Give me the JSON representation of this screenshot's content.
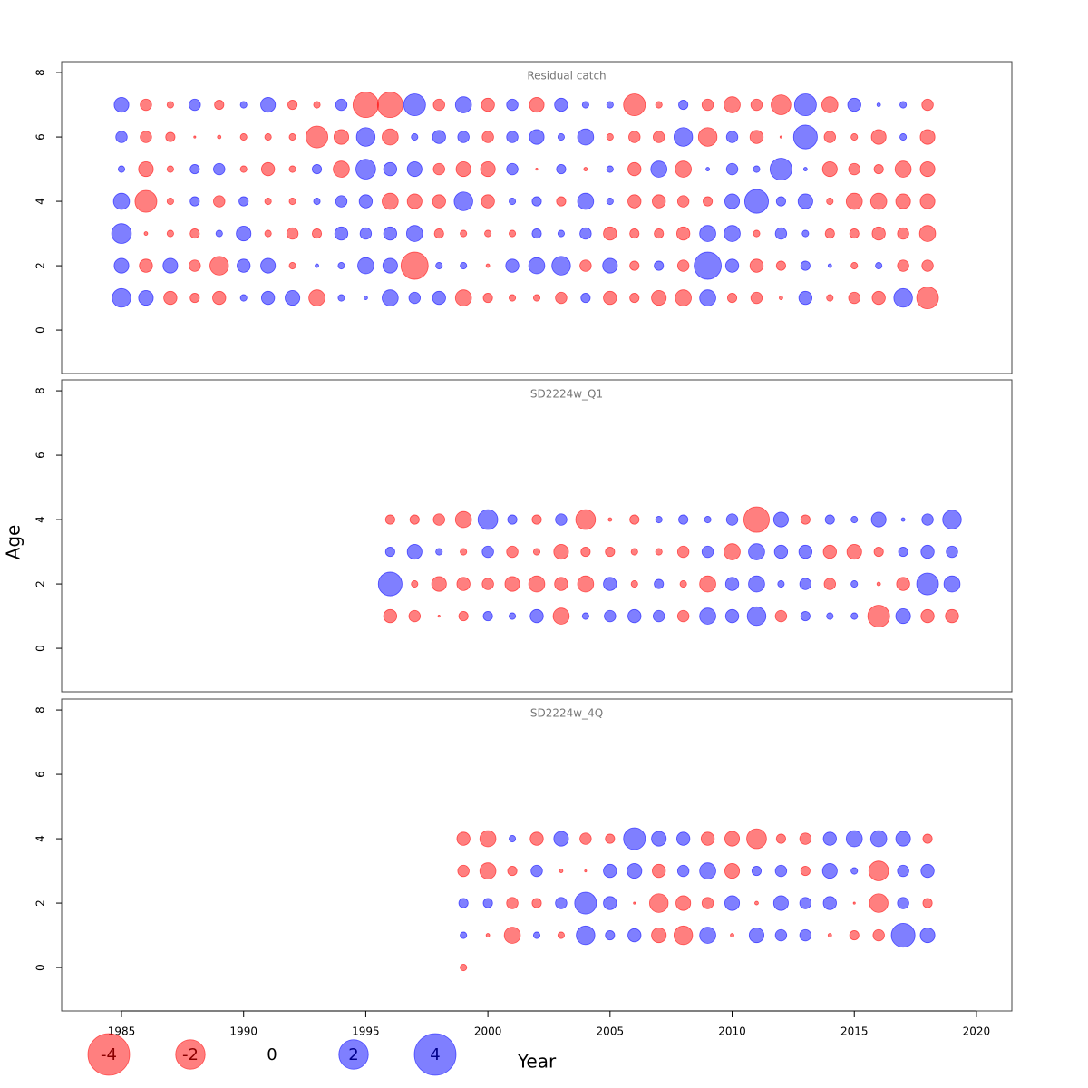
{
  "chart_data": {
    "type": "bubble",
    "xlabel": "Year",
    "ylabel": "Age",
    "xlim": [
      1982.55,
      2021.45
    ],
    "xticks": [
      1985,
      1990,
      1995,
      2000,
      2005,
      2010,
      2015,
      2020
    ],
    "colors": {
      "negative": "#ff0000",
      "positive": "#0000ff"
    },
    "size_legend": {
      "values": [
        -4,
        -2,
        0,
        2,
        4
      ]
    },
    "panels": [
      {
        "title": "Residual catch",
        "ylim": [
          -1.35,
          8.34
        ],
        "yticks": [
          0,
          2,
          4,
          6,
          8
        ],
        "x": [
          1985,
          1986,
          1987,
          1988,
          1989,
          1990,
          1991,
          1992,
          1993,
          1994,
          1995,
          1996,
          1997,
          1998,
          1999,
          2000,
          2001,
          2002,
          2003,
          2004,
          2005,
          2006,
          2007,
          2008,
          2009,
          2010,
          2011,
          2012,
          2013,
          2014,
          2015,
          2016,
          2017,
          2018
        ],
        "series": [
          {
            "age": 7,
            "values": [
              0.5,
              -0.3,
              -0.1,
              0.3,
              -0.2,
              0.1,
              0.5,
              -0.2,
              -0.1,
              0.3,
              -1.5,
              -1.5,
              1.1,
              -0.3,
              0.6,
              -0.4,
              0.3,
              -0.5,
              0.4,
              0.1,
              0.1,
              -1.1,
              -0.1,
              0.2,
              -0.3,
              -0.6,
              -0.3,
              -0.9,
              1.1,
              -0.6,
              0.4,
              0.03,
              0.1,
              -0.3
            ]
          },
          {
            "age": 6,
            "values": [
              0.3,
              -0.3,
              -0.2,
              -0.01,
              -0.03,
              -0.1,
              -0.1,
              -0.1,
              -1.1,
              -0.5,
              0.8,
              -0.6,
              0.1,
              0.4,
              0.3,
              -0.3,
              0.3,
              0.5,
              0.1,
              0.6,
              -0.1,
              -0.3,
              -0.3,
              0.8,
              -0.8,
              0.3,
              -0.4,
              -0.01,
              1.3,
              -0.3,
              -0.1,
              -0.5,
              0.1,
              -0.5
            ]
          },
          {
            "age": 5,
            "values": [
              0.1,
              -0.5,
              -0.1,
              0.2,
              0.3,
              -0.1,
              -0.4,
              -0.1,
              0.2,
              -0.6,
              0.9,
              0.4,
              0.5,
              -0.3,
              -0.5,
              -0.5,
              0.3,
              -0.01,
              0.2,
              -0.03,
              0.1,
              -0.4,
              0.6,
              -0.6,
              0.03,
              0.3,
              0.1,
              1.1,
              0.03,
              -0.5,
              -0.3,
              -0.2,
              -0.6,
              -0.5
            ]
          },
          {
            "age": 4,
            "values": [
              0.6,
              -1.1,
              -0.1,
              0.2,
              -0.3,
              0.2,
              -0.1,
              -0.1,
              0.1,
              0.3,
              0.4,
              -0.6,
              -0.5,
              -0.4,
              0.8,
              -0.4,
              0.1,
              0.2,
              -0.2,
              0.6,
              0.1,
              -0.4,
              -0.4,
              -0.3,
              -0.2,
              0.5,
              1.3,
              0.2,
              0.5,
              -0.1,
              -0.6,
              -0.6,
              -0.5,
              -0.5
            ]
          },
          {
            "age": 3,
            "values": [
              0.9,
              -0.03,
              -0.1,
              -0.2,
              0.1,
              0.5,
              -0.1,
              -0.3,
              -0.2,
              0.4,
              0.3,
              0.4,
              0.6,
              -0.2,
              -0.1,
              -0.1,
              -0.1,
              0.2,
              0.1,
              0.3,
              -0.4,
              -0.2,
              -0.2,
              -0.4,
              0.6,
              0.6,
              -0.1,
              0.3,
              0.1,
              -0.2,
              -0.2,
              -0.4,
              -0.3,
              -0.6
            ]
          },
          {
            "age": 2,
            "values": [
              0.5,
              -0.4,
              0.5,
              -0.3,
              -0.8,
              0.4,
              0.5,
              -0.1,
              0.03,
              0.1,
              0.6,
              0.5,
              -1.7,
              0.1,
              0.1,
              -0.03,
              0.4,
              0.6,
              0.8,
              -0.3,
              0.5,
              -0.2,
              0.2,
              -0.3,
              1.7,
              0.4,
              -0.4,
              -0.2,
              0.2,
              0.03,
              -0.1,
              0.1,
              -0.3,
              -0.3
            ]
          },
          {
            "age": 1,
            "values": [
              0.8,
              0.5,
              -0.4,
              -0.2,
              -0.4,
              0.1,
              0.4,
              0.5,
              -0.6,
              0.1,
              0.03,
              0.6,
              0.3,
              0.4,
              -0.6,
              -0.2,
              -0.1,
              -0.1,
              -0.3,
              0.2,
              -0.4,
              -0.2,
              -0.5,
              -0.6,
              0.6,
              -0.2,
              -0.3,
              -0.03,
              0.4,
              -0.1,
              -0.3,
              -0.4,
              0.8,
              -1.1
            ]
          }
        ]
      },
      {
        "title": "SD2224w_Q1",
        "ylim": [
          -1.35,
          8.34
        ],
        "yticks": [
          0,
          2,
          4,
          6,
          8
        ],
        "x": [
          1996,
          1997,
          1998,
          1999,
          2000,
          2001,
          2002,
          2003,
          2004,
          2005,
          2006,
          2007,
          2008,
          2009,
          2010,
          2011,
          2012,
          2013,
          2014,
          2015,
          2016,
          2017,
          2018,
          2019
        ],
        "series": [
          {
            "age": 4,
            "values": [
              -0.2,
              -0.2,
              -0.3,
              -0.6,
              0.9,
              0.2,
              -0.2,
              0.3,
              -0.9,
              -0.03,
              -0.2,
              0.1,
              0.2,
              0.1,
              0.3,
              -1.5,
              0.5,
              -0.2,
              0.2,
              0.1,
              0.5,
              0.03,
              0.3,
              0.8
            ]
          },
          {
            "age": 3,
            "values": [
              0.2,
              0.5,
              0.1,
              -0.1,
              0.3,
              -0.3,
              -0.1,
              -0.5,
              -0.2,
              -0.2,
              -0.1,
              -0.1,
              -0.3,
              0.3,
              -0.6,
              0.6,
              0.4,
              0.4,
              -0.4,
              -0.5,
              -0.2,
              0.2,
              0.4,
              0.3
            ]
          },
          {
            "age": 2,
            "values": [
              1.3,
              -0.1,
              -0.5,
              -0.4,
              -0.3,
              -0.5,
              -0.6,
              -0.4,
              -0.6,
              0.4,
              -0.1,
              0.2,
              -0.1,
              -0.6,
              0.4,
              0.6,
              0.1,
              0.3,
              -0.3,
              0.1,
              -0.03,
              -0.4,
              1.1,
              0.6
            ]
          },
          {
            "age": 1,
            "values": [
              -0.4,
              -0.3,
              -0.01,
              -0.2,
              0.2,
              0.1,
              0.4,
              -0.6,
              0.1,
              0.3,
              0.4,
              0.3,
              -0.3,
              0.6,
              0.4,
              0.8,
              -0.3,
              0.2,
              0.1,
              0.1,
              -1.1,
              0.5,
              -0.4,
              -0.4
            ]
          }
        ]
      },
      {
        "title": "SD2224w_4Q",
        "ylim": [
          -1.35,
          8.34
        ],
        "yticks": [
          0,
          2,
          4,
          6,
          8
        ],
        "x": [
          1999,
          2000,
          2001,
          2002,
          2003,
          2004,
          2005,
          2006,
          2007,
          2008,
          2009,
          2010,
          2011,
          2012,
          2013,
          2014,
          2015,
          2016,
          2017,
          2018
        ],
        "series": [
          {
            "age": 4,
            "values": [
              -0.4,
              -0.6,
              0.1,
              -0.4,
              0.5,
              -0.3,
              -0.2,
              1.1,
              0.5,
              0.4,
              -0.4,
              -0.5,
              -0.9,
              -0.2,
              -0.3,
              0.4,
              0.6,
              0.6,
              0.5,
              -0.2
            ]
          },
          {
            "age": 3,
            "values": [
              -0.3,
              -0.6,
              -0.2,
              0.3,
              -0.03,
              -0.01,
              0.4,
              0.5,
              -0.4,
              0.3,
              0.6,
              -0.5,
              0.2,
              0.3,
              -0.2,
              0.5,
              0.1,
              -0.9,
              0.3,
              0.4
            ]
          },
          {
            "age": 2,
            "values": [
              0.2,
              0.2,
              -0.3,
              -0.2,
              0.3,
              1.1,
              0.4,
              -0.01,
              -0.8,
              -0.5,
              -0.3,
              0.5,
              -0.03,
              0.5,
              0.3,
              0.4,
              -0.01,
              -0.8,
              0.3,
              -0.2
            ]
          },
          {
            "age": 1,
            "values": [
              0.1,
              -0.03,
              -0.6,
              0.1,
              -0.1,
              0.8,
              0.2,
              0.4,
              -0.5,
              -0.8,
              0.6,
              -0.03,
              0.5,
              0.3,
              0.3,
              -0.03,
              -0.2,
              -0.3,
              1.3,
              0.5
            ]
          },
          {
            "age": 0,
            "values": [
              -0.1,
              null,
              null,
              null,
              null,
              null,
              null,
              null,
              null,
              null,
              null,
              null,
              null,
              null,
              null,
              null,
              null,
              null,
              null,
              null
            ]
          }
        ]
      }
    ]
  }
}
